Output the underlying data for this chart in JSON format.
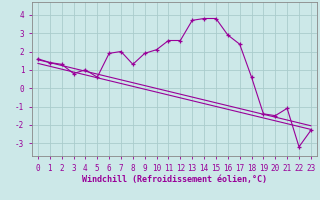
{
  "xlabel": "Windchill (Refroidissement éolien,°C)",
  "ylabel": "",
  "background_color": "#cce8e8",
  "grid_color": "#aacccc",
  "line_color": "#990099",
  "spine_color": "#888888",
  "xlim": [
    -0.5,
    23.5
  ],
  "ylim": [
    -3.7,
    4.7
  ],
  "yticks": [
    -3,
    -2,
    -1,
    0,
    1,
    2,
    3,
    4
  ],
  "xticks": [
    0,
    1,
    2,
    3,
    4,
    5,
    6,
    7,
    8,
    9,
    10,
    11,
    12,
    13,
    14,
    15,
    16,
    17,
    18,
    19,
    20,
    21,
    22,
    23
  ],
  "main_x": [
    0,
    1,
    2,
    3,
    4,
    5,
    6,
    7,
    8,
    9,
    10,
    11,
    12,
    13,
    14,
    15,
    16,
    17,
    18,
    19,
    20,
    21,
    22,
    23
  ],
  "main_y": [
    1.6,
    1.4,
    1.3,
    0.8,
    1.0,
    0.6,
    1.9,
    2.0,
    1.3,
    1.9,
    2.1,
    2.6,
    2.6,
    3.7,
    3.8,
    3.8,
    2.9,
    2.4,
    0.6,
    -1.4,
    -1.5,
    -1.1,
    -3.2,
    -2.3
  ],
  "trend1_x": [
    0,
    23
  ],
  "trend1_y": [
    1.55,
    -2.05
  ],
  "trend2_x": [
    0,
    23
  ],
  "trend2_y": [
    1.35,
    -2.25
  ],
  "tick_fontsize": 5.5,
  "xlabel_fontsize": 6.0,
  "linewidth": 0.8,
  "markersize": 3.5
}
